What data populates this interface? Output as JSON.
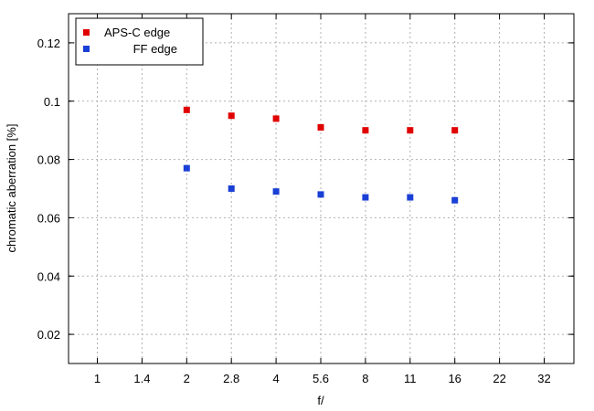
{
  "chart_data": {
    "type": "scatter",
    "title": "",
    "xlabel": "f/",
    "ylabel": "chromatic aberration [%]",
    "x_categories": [
      "1",
      "1.4",
      "2",
      "2.8",
      "4",
      "5.6",
      "8",
      "11",
      "16",
      "22",
      "32"
    ],
    "ylim": [
      0.01,
      0.13
    ],
    "y_ticks": [
      0.02,
      0.04,
      0.06,
      0.08,
      0.1,
      0.12
    ],
    "y_tick_labels": [
      "0.02",
      "0.04",
      "0.06",
      "0.08",
      "0.1",
      "0.12"
    ],
    "grid": true,
    "legend_position": "top-left",
    "series": [
      {
        "name": "APS-C edge",
        "color": "#e00000",
        "x": [
          "2",
          "2.8",
          "4",
          "5.6",
          "8",
          "11",
          "16"
        ],
        "y": [
          0.097,
          0.095,
          0.094,
          0.091,
          0.09,
          0.09,
          0.09
        ]
      },
      {
        "name": "FF edge",
        "color": "#1a3fd6",
        "x": [
          "2",
          "2.8",
          "4",
          "5.6",
          "8",
          "11",
          "16"
        ],
        "y": [
          0.077,
          0.07,
          0.069,
          0.068,
          0.067,
          0.067,
          0.066
        ]
      }
    ]
  }
}
